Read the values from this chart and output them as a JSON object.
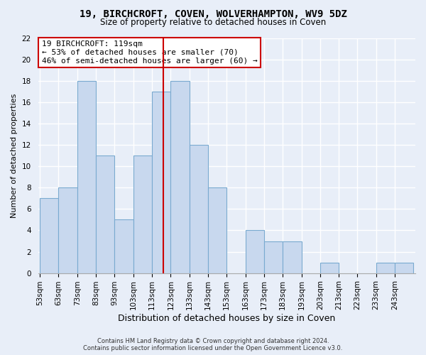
{
  "title": "19, BIRCHCROFT, COVEN, WOLVERHAMPTON, WV9 5DZ",
  "subtitle": "Size of property relative to detached houses in Coven",
  "xlabel": "Distribution of detached houses by size in Coven",
  "ylabel": "Number of detached properties",
  "bins": [
    53,
    63,
    73,
    83,
    93,
    103,
    113,
    123,
    133,
    143,
    153,
    163,
    173,
    183,
    193,
    203,
    213,
    223,
    233,
    243,
    253
  ],
  "counts": [
    7,
    8,
    18,
    11,
    5,
    11,
    17,
    18,
    12,
    8,
    0,
    4,
    3,
    3,
    0,
    1,
    0,
    0,
    1,
    1
  ],
  "bar_color": "#c8d8ee",
  "bar_edge_color": "#7aaad0",
  "vline_x": 119,
  "vline_color": "#cc0000",
  "ylim": [
    0,
    22
  ],
  "yticks": [
    0,
    2,
    4,
    6,
    8,
    10,
    12,
    14,
    16,
    18,
    20,
    22
  ],
  "annotation_title": "19 BIRCHCROFT: 119sqm",
  "annotation_line1": "← 53% of detached houses are smaller (70)",
  "annotation_line2": "46% of semi-detached houses are larger (60) →",
  "annotation_box_color": "#ffffff",
  "annotation_box_edge": "#cc0000",
  "footer_line1": "Contains HM Land Registry data © Crown copyright and database right 2024.",
  "footer_line2": "Contains public sector information licensed under the Open Government Licence v3.0.",
  "bg_color": "#e8eef8",
  "plot_bg_color": "#e8eef8",
  "grid_color": "#ffffff",
  "tick_label_fontsize": 7.5,
  "title_fontsize": 10,
  "subtitle_fontsize": 8.5,
  "xlabel_fontsize": 9,
  "ylabel_fontsize": 8,
  "annotation_fontsize": 8,
  "footer_fontsize": 6
}
